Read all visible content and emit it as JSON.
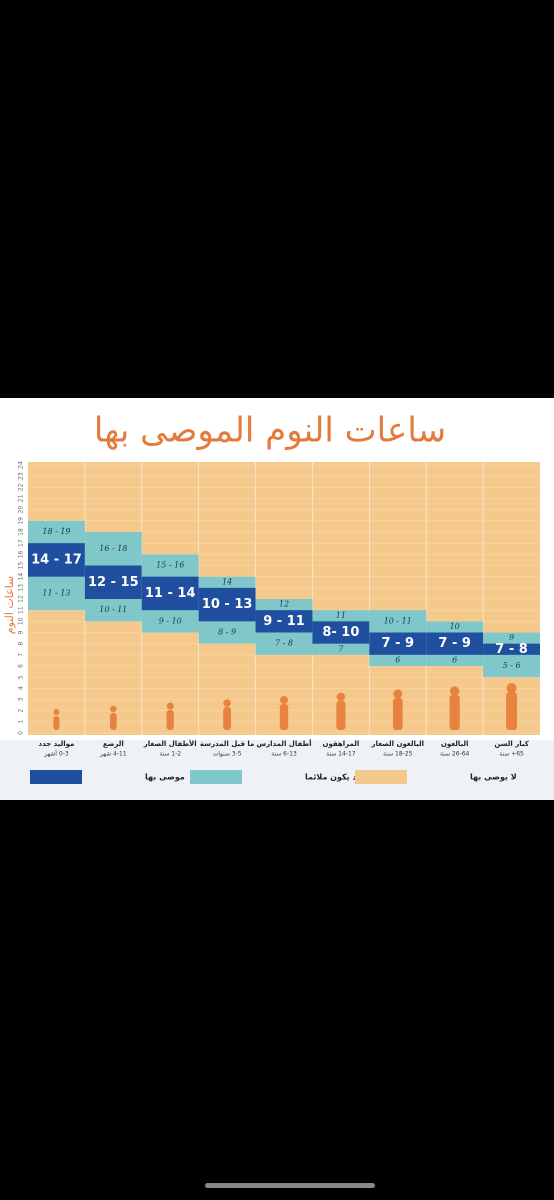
{
  "chart_data": {
    "type": "range-bar",
    "title": "ساعات النوم الموصى بها",
    "y_label": "ساعات النوم",
    "categories": [
      "مواليد جدد",
      "الرضع",
      "الأطفال الصغار",
      "ما قبل المدرسة",
      "أطفال المدارس",
      "المراهقون",
      "البالغون الصغار",
      "البالغون",
      "كبار السن"
    ],
    "age_labels": [
      "0-3 أشهر",
      "4-11 شهر",
      "1-2 سنة",
      "3-5 سنوات",
      "6-13 سنة",
      "14-17 سنة",
      "18-25 سنة",
      "26-64 سنة",
      "65+ سنة"
    ],
    "ylim": [
      0,
      24
    ],
    "yticks": [
      0,
      1,
      2,
      3,
      4,
      5,
      6,
      7,
      8,
      9,
      10,
      11,
      12,
      13,
      14,
      15,
      16,
      17,
      18,
      19,
      20,
      21,
      22,
      23,
      24
    ],
    "series": [
      {
        "name": "موصى بها",
        "color": "#1f4f9e",
        "values": [
          [
            14,
            17
          ],
          [
            12,
            15
          ],
          [
            11,
            14
          ],
          [
            10,
            13
          ],
          [
            9,
            11
          ],
          [
            8,
            10
          ],
          [
            7,
            9
          ],
          [
            7,
            9
          ],
          [
            7,
            8
          ]
        ],
        "value_labels": [
          "14 - 17",
          "12 - 15",
          "11 - 14",
          "10 - 13",
          "9 - 11",
          "8- 10",
          "7 - 9",
          "7 - 9",
          "7 - 8"
        ]
      },
      {
        "name": "قد يكون ملائما",
        "color": "#7fc7c9",
        "values_above": [
          [
            18,
            19
          ],
          [
            16,
            18
          ],
          [
            15,
            16
          ],
          [
            14,
            14
          ],
          [
            12,
            12
          ],
          [
            11,
            11
          ],
          [
            10,
            11
          ],
          [
            10,
            10
          ],
          [
            9,
            9
          ]
        ],
        "labels_above": [
          "18 - 19",
          "16 - 18",
          "15 - 16",
          "14",
          "12",
          "11",
          "10 - 11",
          "10",
          "9"
        ],
        "values_below": [
          [
            11,
            13
          ],
          [
            10,
            11
          ],
          [
            9,
            10
          ],
          [
            8,
            9
          ],
          [
            7,
            8
          ],
          [
            7,
            7
          ],
          [
            6,
            6
          ],
          [
            6,
            6
          ],
          [
            5,
            6
          ]
        ],
        "labels_below": [
          "11 - 13",
          "10 - 11",
          "9 - 10",
          "8 - 9",
          "7 - 8",
          "7",
          "6",
          "6",
          "5 - 6"
        ]
      },
      {
        "name": "لا يوصى بها",
        "color": "#f5c98b"
      }
    ]
  }
}
